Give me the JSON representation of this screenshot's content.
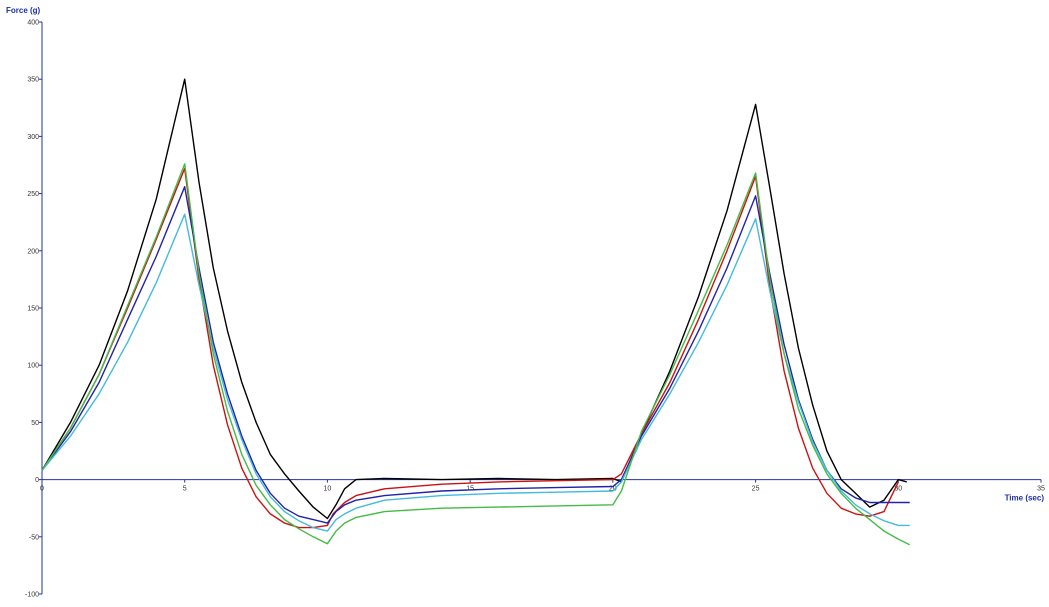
{
  "chart_data": {
    "type": "line",
    "xlabel": "Time (sec)",
    "ylabel": "Force (g)",
    "xlim": [
      0,
      35
    ],
    "ylim": [
      -100,
      400
    ],
    "xticks": [
      0,
      5,
      10,
      15,
      20,
      25,
      30,
      35
    ],
    "yticks": [
      -100,
      -50,
      0,
      50,
      100,
      150,
      200,
      250,
      300,
      350,
      400
    ],
    "grid": false,
    "legend": "none",
    "axis_color": "#2233aa",
    "series": [
      {
        "color": "#000000",
        "x": [
          0,
          1,
          2,
          3,
          4,
          5,
          5.5,
          6,
          6.5,
          7,
          7.5,
          8,
          8.5,
          9,
          9.5,
          10,
          10.3,
          10.6,
          11,
          12,
          14,
          16,
          18,
          20,
          20.3,
          21,
          22,
          23,
          24,
          25,
          25.5,
          26,
          26.5,
          27,
          27.5,
          28,
          28.5,
          29,
          29.5,
          30,
          30.3
        ],
        "y": [
          8,
          50,
          100,
          165,
          245,
          350,
          260,
          185,
          130,
          85,
          50,
          22,
          5,
          -10,
          -24,
          -34,
          -22,
          -8,
          0,
          1,
          0,
          1,
          0,
          1,
          -2,
          40,
          95,
          160,
          235,
          328,
          255,
          180,
          115,
          65,
          25,
          0,
          -12,
          -24,
          -18,
          0,
          -2
        ]
      },
      {
        "color": "#cc1111",
        "x": [
          0,
          1,
          2,
          3,
          4,
          5,
          5.5,
          6,
          6.5,
          7,
          7.5,
          8,
          8.5,
          9,
          9.5,
          10,
          10.2,
          10.6,
          11,
          12,
          14,
          16,
          18,
          20,
          20.3,
          21,
          22,
          23,
          24,
          25,
          25.5,
          26,
          26.5,
          27,
          27.5,
          28,
          28.5,
          29,
          29.5,
          30
        ],
        "y": [
          8,
          45,
          92,
          150,
          210,
          272,
          175,
          100,
          48,
          10,
          -15,
          -30,
          -38,
          -42,
          -42,
          -40,
          -30,
          -20,
          -14,
          -8,
          -4,
          -2,
          -1,
          0,
          5,
          40,
          85,
          140,
          200,
          265,
          168,
          95,
          45,
          10,
          -12,
          -25,
          -30,
          -32,
          -28,
          -2
        ]
      },
      {
        "color": "#2222aa",
        "x": [
          0,
          1,
          2,
          3,
          4,
          5,
          5.5,
          6,
          6.5,
          7,
          7.5,
          8,
          8.5,
          9,
          9.5,
          10,
          10.3,
          10.6,
          11,
          12,
          14,
          16,
          18,
          20,
          20.3,
          21,
          22,
          23,
          24,
          25,
          25.5,
          26,
          26.5,
          27,
          27.5,
          28,
          28.5,
          29,
          29.5,
          30,
          30.4
        ],
        "y": [
          8,
          42,
          85,
          140,
          195,
          256,
          185,
          120,
          75,
          38,
          8,
          -12,
          -25,
          -32,
          -35,
          -38,
          -28,
          -22,
          -18,
          -14,
          -10,
          -8,
          -7,
          -6,
          0,
          38,
          80,
          130,
          185,
          248,
          180,
          118,
          70,
          35,
          8,
          -8,
          -16,
          -20,
          -20,
          -20,
          -20
        ]
      },
      {
        "color": "#44bbdd",
        "x": [
          0,
          1,
          2,
          3,
          4,
          5,
          5.5,
          6,
          6.5,
          7,
          7.5,
          8,
          8.5,
          9,
          9.5,
          10,
          10.3,
          10.6,
          11,
          12,
          14,
          16,
          18,
          20,
          20.3,
          21,
          22,
          23,
          24,
          25,
          25.5,
          26,
          26.5,
          27,
          27.5,
          28,
          28.5,
          29,
          29.5,
          30,
          30.4
        ],
        "y": [
          8,
          38,
          75,
          120,
          172,
          232,
          170,
          115,
          70,
          35,
          5,
          -15,
          -28,
          -36,
          -42,
          -45,
          -35,
          -30,
          -25,
          -18,
          -14,
          -12,
          -11,
          -10,
          -2,
          35,
          75,
          120,
          170,
          228,
          165,
          110,
          68,
          33,
          8,
          -10,
          -22,
          -30,
          -36,
          -40,
          -40
        ]
      },
      {
        "color": "#44bb44",
        "x": [
          0,
          1,
          2,
          3,
          4,
          5,
          5.5,
          6,
          6.5,
          7,
          7.5,
          8,
          8.5,
          9,
          9.5,
          10,
          10.3,
          10.6,
          11,
          12,
          14,
          16,
          18,
          20,
          20.3,
          21,
          22,
          23,
          24,
          25,
          25.5,
          26,
          26.5,
          27,
          27.5,
          28,
          28.5,
          29,
          29.5,
          30,
          30.4
        ],
        "y": [
          8,
          45,
          92,
          152,
          212,
          276,
          180,
          110,
          60,
          22,
          -5,
          -22,
          -35,
          -43,
          -50,
          -56,
          -45,
          -38,
          -33,
          -28,
          -25,
          -24,
          -23,
          -22,
          -10,
          42,
          92,
          148,
          205,
          268,
          175,
          110,
          62,
          30,
          5,
          -12,
          -25,
          -35,
          -45,
          -52,
          -57
        ]
      }
    ]
  }
}
